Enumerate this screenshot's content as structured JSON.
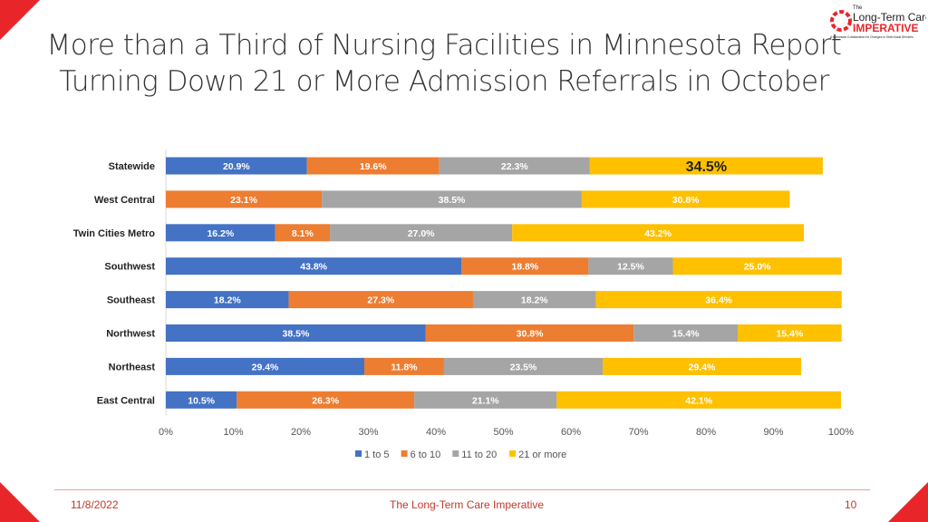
{
  "slide": {
    "title_line1": "More than a Third of Nursing Facilities in Minnesota Report",
    "title_line2": "Turning Down 21 or More Admission Referrals in October",
    "date": "11/8/2022",
    "footer": "The Long-Term Care Imperative",
    "page": "10"
  },
  "logo": {
    "small": "The",
    "line1": "Long-Term Care",
    "line2": "IMPERATIVE",
    "tagline": "A Minnesota Collaboration for Changes in Older Adult Services"
  },
  "colors": {
    "accent": "#e8262a",
    "1 to 5": "#4472c4",
    "6 to 10": "#ed7d31",
    "11 to 20": "#a5a5a5",
    "21 or more": "#ffc000"
  },
  "chart_data": {
    "type": "bar",
    "orientation": "horizontal",
    "stacked": true,
    "categories": [
      "Statewide",
      "West Central",
      "Twin Cities Metro",
      "Southwest",
      "Southeast",
      "Northwest",
      "Northeast",
      "East Central"
    ],
    "series": [
      {
        "name": "1 to 5",
        "values": [
          20.9,
          null,
          16.2,
          43.8,
          18.2,
          38.5,
          29.4,
          10.5
        ]
      },
      {
        "name": "6 to 10",
        "values": [
          19.6,
          23.1,
          8.1,
          18.8,
          27.3,
          30.8,
          11.8,
          26.3
        ]
      },
      {
        "name": "11 to 20",
        "values": [
          22.3,
          38.5,
          27.0,
          12.5,
          18.2,
          15.4,
          23.5,
          21.1
        ]
      },
      {
        "name": "21 or more",
        "values": [
          34.5,
          30.8,
          43.2,
          25.0,
          36.4,
          15.4,
          29.4,
          42.1
        ]
      }
    ],
    "xlim": [
      0,
      100
    ],
    "xticks": [
      "0%",
      "10%",
      "20%",
      "30%",
      "40%",
      "50%",
      "60%",
      "70%",
      "80%",
      "90%",
      "100%"
    ],
    "legend": "bottom",
    "grid": false,
    "highlight": "Statewide 21 or more"
  }
}
